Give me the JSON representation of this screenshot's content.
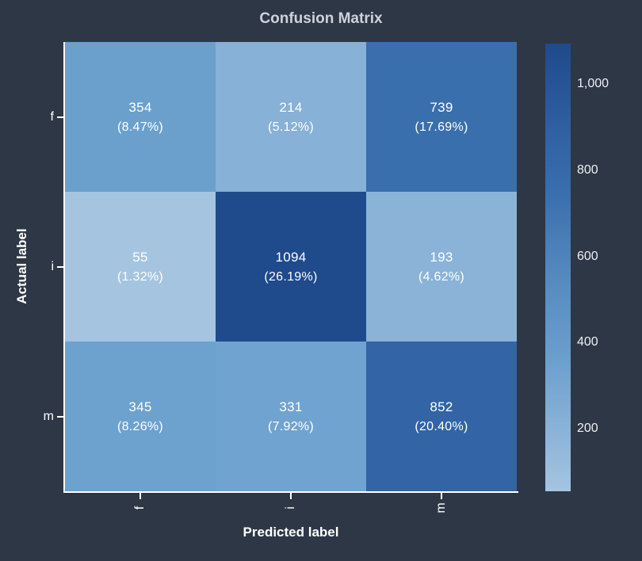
{
  "chart_data": {
    "type": "heatmap",
    "title": "Confusion Matrix",
    "xlabel": "Predicted label",
    "ylabel": "Actual label",
    "x_categories": [
      "f",
      "i",
      "m"
    ],
    "y_categories": [
      "f",
      "i",
      "m"
    ],
    "values": [
      [
        354,
        214,
        739
      ],
      [
        55,
        1094,
        193
      ],
      [
        345,
        331,
        852
      ]
    ],
    "percent_labels": [
      [
        "(8.47%)",
        "(5.12%)",
        "(17.69%)"
      ],
      [
        "(1.32%)",
        "(26.19%)",
        "(4.62%)"
      ],
      [
        "(8.26%)",
        "(7.92%)",
        "(20.40%)"
      ]
    ],
    "value_min": 55,
    "value_max": 1094,
    "colorbar_ticks": [
      {
        "value": 1000,
        "label": "1,000"
      },
      {
        "value": 800,
        "label": "800"
      },
      {
        "value": 600,
        "label": "600"
      },
      {
        "value": 400,
        "label": "400"
      },
      {
        "value": 200,
        "label": "200"
      }
    ],
    "colorscale": [
      {
        "t": 0.0,
        "color": "#a5c4e0"
      },
      {
        "t": 0.15,
        "color": "#88b1d6"
      },
      {
        "t": 0.29,
        "color": "#6ba0cd"
      },
      {
        "t": 0.5,
        "color": "#5287bd"
      },
      {
        "t": 0.66,
        "color": "#3a6fae"
      },
      {
        "t": 0.77,
        "color": "#3264a6"
      },
      {
        "t": 1.0,
        "color": "#1f4a8c"
      }
    ],
    "grid": false,
    "legend_position": "right-colorbar"
  },
  "colors": {
    "background": "#2e3746",
    "title_text": "#ced3da",
    "axis_text": "#ffffff",
    "cell_text": "#ffffff"
  }
}
